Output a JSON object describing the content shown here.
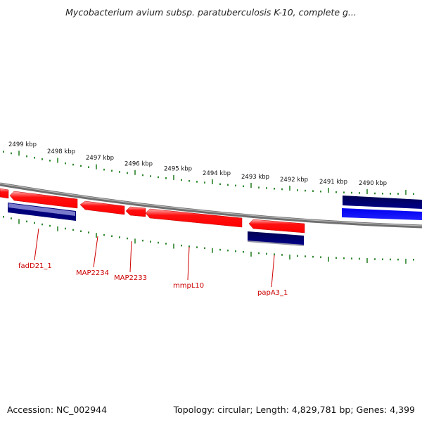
{
  "title": "Mycobacterium avium subsp. paratuberculosis K-10, complete g...",
  "footer": {
    "accession": "Accession: NC_002944",
    "summary": "Topology: circular; Length: 4,829,781 bp; Genes: 4,399"
  },
  "colors": {
    "forward_gene": "#ff0000",
    "reverse_gene": "#00007a",
    "reverse_gene_light": "#1010ff",
    "backbone": "#7f7f7f",
    "ticks": "#1a7a1a",
    "gene_label": "#cc0000"
  },
  "ruler": {
    "major_labels": [
      "2499 kbp",
      "2498 kbp",
      "2497 kbp",
      "2496 kbp",
      "2495 kbp",
      "2494 kbp",
      "2493 kbp",
      "2492 kbp",
      "2491 kbp",
      "2490 kbp"
    ]
  },
  "gene_labels": [
    "fadD21_1",
    "MAP2234",
    "MAP2233",
    "mmpL10",
    "papA3_1"
  ]
}
